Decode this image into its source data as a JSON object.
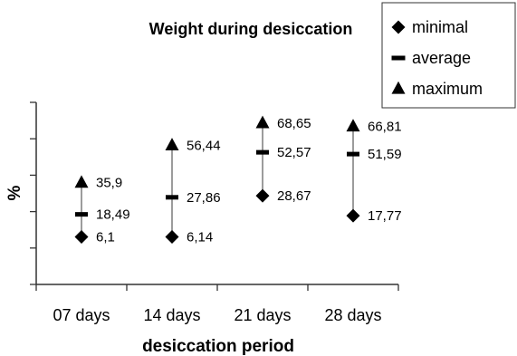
{
  "chart_data": {
    "type": "hi-lo-avg",
    "title": "Weight during desiccation",
    "xlabel": "desiccation period",
    "ylabel": "%",
    "categories": [
      "07 days",
      "14 days",
      "21 days",
      "28 days"
    ],
    "ylim": [
      -20,
      80
    ],
    "y_tick_labels_shown": false,
    "series": [
      {
        "name": "minimal",
        "marker": "diamond",
        "values": [
          6.1,
          6.14,
          28.67,
          17.77
        ],
        "labels": [
          "6,1",
          "6,14",
          "28,67",
          "17,77"
        ]
      },
      {
        "name": "average",
        "marker": "dash",
        "values": [
          18.49,
          27.86,
          52.57,
          51.59
        ],
        "labels": [
          "18,49",
          "27,86",
          "52,57",
          "51,59"
        ]
      },
      {
        "name": "maximum",
        "marker": "triangle",
        "values": [
          35.9,
          56.44,
          68.65,
          66.81
        ],
        "labels": [
          "35,9",
          "56,44",
          "68,65",
          "66,81"
        ]
      }
    ],
    "legend": {
      "placement": "top-right"
    },
    "grid": false,
    "colors": {
      "marker": "#000000",
      "range_line": "#666666",
      "axis": "#333333"
    }
  }
}
